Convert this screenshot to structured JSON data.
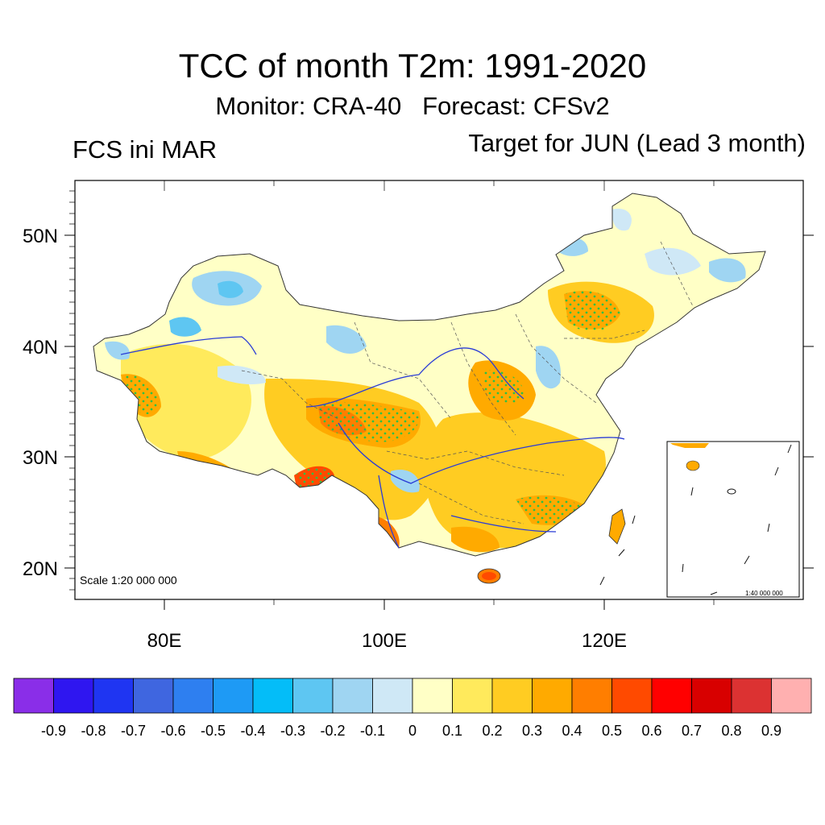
{
  "header": {
    "title": "TCC of month T2m: 1991-2020",
    "subtitle": "Monitor: CRA-40   Forecast: CFSv2",
    "left_label": "FCS ini MAR",
    "right_label": "Target for JUN (Lead 3 month)"
  },
  "map": {
    "lat_labels": [
      "50N",
      "40N",
      "30N",
      "20N"
    ],
    "lon_labels": [
      "80E",
      "100E",
      "120E"
    ],
    "scale_main": "Scale 1:20 000 000",
    "scale_inset": "1:40 000 000",
    "colors": {
      "land_base": "#ffffc8",
      "river": "#2a3cd6",
      "border": "#333333",
      "stipple": "#2fbf45"
    }
  },
  "legend": {
    "labels": [
      "-0.9",
      "-0.8",
      "-0.7",
      "-0.6",
      "-0.5",
      "-0.4",
      "-0.3",
      "-0.2",
      "-0.1",
      "0",
      "0.1",
      "0.2",
      "0.3",
      "0.4",
      "0.5",
      "0.6",
      "0.7",
      "0.8",
      "0.9"
    ],
    "colors": [
      "#8a2ee8",
      "#2f16f0",
      "#1f35f2",
      "#3f66e0",
      "#2e7ff0",
      "#1e9af5",
      "#04bdf8",
      "#5ec6f2",
      "#9fd5f2",
      "#cfe8f6",
      "#ffffc6",
      "#ffea5c",
      "#ffcc22",
      "#ffaa00",
      "#ff7e00",
      "#ff4a00",
      "#ff0000",
      "#d80000",
      "#dc3232",
      "#ffb0b0"
    ]
  }
}
